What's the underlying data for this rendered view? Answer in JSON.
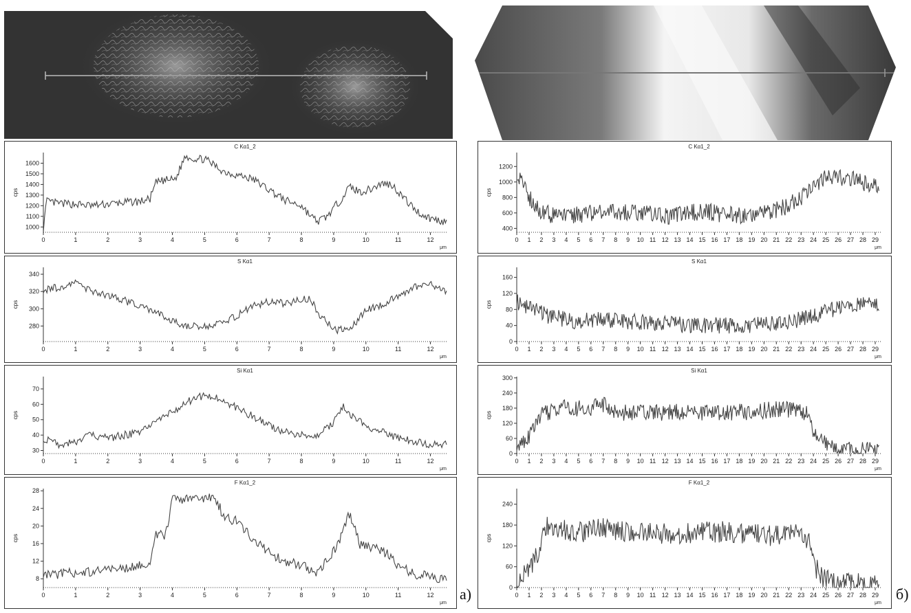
{
  "panel_labels": {
    "left": "а)",
    "right": "б)"
  },
  "chart_data": [
    {
      "id": "a-C",
      "type": "line",
      "title": "C Kα1_2",
      "ylabel": "cps",
      "xunit": "μm",
      "xlim": [
        0,
        12.5
      ],
      "ylim": [
        950,
        1700
      ],
      "xticks": [
        0,
        1,
        2,
        3,
        4,
        5,
        6,
        7,
        8,
        9,
        10,
        11,
        12
      ],
      "yticks": [
        1000,
        1100,
        1200,
        1300,
        1400,
        1500,
        1600
      ],
      "x": [
        0,
        0.1,
        0.5,
        1.0,
        1.5,
        2.0,
        2.5,
        3.0,
        3.3,
        3.5,
        3.8,
        4.1,
        4.4,
        4.7,
        5.0,
        5.3,
        5.6,
        6.0,
        6.5,
        7.0,
        7.5,
        8.0,
        8.3,
        8.5,
        8.8,
        9.2,
        9.5,
        9.8,
        10.1,
        10.5,
        10.8,
        11.1,
        11.4,
        11.7,
        12.0,
        12.3,
        12.5
      ],
      "y": [
        980,
        1240,
        1220,
        1215,
        1200,
        1215,
        1230,
        1240,
        1260,
        1420,
        1440,
        1450,
        1670,
        1640,
        1640,
        1580,
        1520,
        1490,
        1450,
        1350,
        1250,
        1200,
        1100,
        1050,
        1100,
        1250,
        1380,
        1330,
        1350,
        1410,
        1400,
        1300,
        1200,
        1120,
        1080,
        1060,
        1050
      ]
    },
    {
      "id": "a-S",
      "type": "line",
      "title": "S Kα1",
      "ylabel": "cps",
      "xunit": "μm",
      "xlim": [
        0,
        12.5
      ],
      "ylim": [
        262,
        348
      ],
      "xticks": [
        0,
        1,
        2,
        3,
        4,
        5,
        6,
        7,
        8,
        9,
        10,
        11,
        12
      ],
      "yticks": [
        280,
        300,
        320,
        340
      ],
      "x": [
        0,
        0.5,
        1.0,
        1.5,
        2.0,
        2.5,
        3.0,
        3.5,
        4.0,
        4.5,
        5.0,
        5.5,
        6.0,
        6.5,
        7.0,
        7.5,
        8.0,
        8.3,
        8.5,
        8.8,
        9.0,
        9.3,
        9.6,
        10.0,
        10.5,
        11.0,
        11.5,
        12.0,
        12.5
      ],
      "y": [
        322,
        325,
        330,
        320,
        316,
        310,
        302,
        296,
        285,
        280,
        279,
        283,
        292,
        303,
        308,
        306,
        310,
        312,
        295,
        285,
        275,
        276,
        280,
        298,
        305,
        315,
        325,
        328,
        320
      ]
    },
    {
      "id": "a-Si",
      "type": "line",
      "title": "Si Kα1",
      "ylabel": "cps",
      "xunit": "μm",
      "xlim": [
        0,
        12.5
      ],
      "ylim": [
        28,
        78
      ],
      "xticks": [
        0,
        1,
        2,
        3,
        4,
        5,
        6,
        7,
        8,
        9,
        10,
        11,
        12
      ],
      "yticks": [
        30,
        40,
        50,
        60,
        70
      ],
      "x": [
        0,
        0.5,
        1.0,
        1.5,
        2.0,
        2.5,
        3.0,
        3.5,
        4.0,
        4.5,
        5.0,
        5.5,
        6.0,
        6.5,
        7.0,
        7.5,
        8.0,
        8.5,
        9.0,
        9.3,
        9.6,
        10.0,
        10.5,
        11.0,
        11.5,
        12.0,
        12.5
      ],
      "y": [
        38,
        34,
        36,
        40,
        38,
        40,
        42,
        48,
        55,
        62,
        66,
        63,
        58,
        52,
        46,
        42,
        40,
        40,
        48,
        58,
        52,
        46,
        42,
        38,
        36,
        34,
        34
      ]
    },
    {
      "id": "a-F",
      "type": "line",
      "title": "F Kα1_2",
      "ylabel": "cps",
      "xunit": "μm",
      "xlim": [
        0,
        12.5
      ],
      "ylim": [
        6,
        28.5
      ],
      "xticks": [
        0,
        1,
        2,
        3,
        4,
        5,
        6,
        7,
        8,
        9,
        10,
        11,
        12
      ],
      "yticks": [
        8,
        12,
        16,
        20,
        24,
        28
      ],
      "x": [
        0,
        0.5,
        1.0,
        1.5,
        2.0,
        2.5,
        3.0,
        3.3,
        3.5,
        3.8,
        4.0,
        4.3,
        4.6,
        5.0,
        5.3,
        5.6,
        6.0,
        6.5,
        7.0,
        7.5,
        8.0,
        8.5,
        8.8,
        9.2,
        9.5,
        9.8,
        10.2,
        10.6,
        11.0,
        11.5,
        12.0,
        12.5
      ],
      "y": [
        9,
        9,
        9.5,
        9.5,
        10,
        10.5,
        11,
        12,
        18,
        18,
        26,
        26,
        26,
        26,
        27,
        22,
        21,
        17,
        14,
        12,
        11,
        9.5,
        12,
        17,
        23,
        16,
        15,
        14,
        11,
        9,
        8.5,
        8
      ]
    },
    {
      "id": "b-C",
      "type": "line",
      "title": "C Kα1_2",
      "ylabel": "cps",
      "xunit": "μm",
      "xlim": [
        0,
        29.5
      ],
      "ylim": [
        350,
        1380
      ],
      "xticks": [
        0,
        1,
        2,
        3,
        4,
        5,
        6,
        7,
        8,
        9,
        10,
        11,
        12,
        13,
        14,
        15,
        16,
        17,
        18,
        19,
        20,
        21,
        22,
        23,
        24,
        25,
        26,
        27,
        28,
        29
      ],
      "yticks": [
        400,
        600,
        800,
        1000,
        1200
      ],
      "x": [
        0,
        0.5,
        1,
        2,
        3,
        4,
        5,
        6,
        7,
        8,
        9,
        10,
        11,
        12,
        13,
        14,
        15,
        16,
        17,
        18,
        19,
        20,
        21,
        22,
        23,
        24,
        25,
        26,
        27,
        28,
        29,
        29.3
      ],
      "y": [
        1080,
        1000,
        800,
        620,
        560,
        560,
        580,
        600,
        640,
        620,
        600,
        600,
        580,
        560,
        580,
        600,
        620,
        600,
        580,
        560,
        570,
        600,
        640,
        700,
        800,
        950,
        1050,
        1050,
        1050,
        1000,
        950,
        920
      ]
    },
    {
      "id": "b-S",
      "type": "line",
      "title": "S Kα1",
      "ylabel": "cps",
      "xunit": "μm",
      "xlim": [
        0,
        29.5
      ],
      "ylim": [
        0,
        185
      ],
      "xticks": [
        0,
        1,
        2,
        3,
        4,
        5,
        6,
        7,
        8,
        9,
        10,
        11,
        12,
        13,
        14,
        15,
        16,
        17,
        18,
        19,
        20,
        21,
        22,
        23,
        24,
        25,
        26,
        27,
        28,
        29
      ],
      "yticks": [
        0,
        40,
        80,
        120,
        160
      ],
      "x": [
        0,
        1,
        2,
        3,
        4,
        5,
        6,
        7,
        8,
        9,
        10,
        11,
        12,
        13,
        14,
        15,
        16,
        17,
        18,
        19,
        20,
        21,
        22,
        23,
        24,
        25,
        26,
        27,
        28,
        29,
        29.3
      ],
      "y": [
        100,
        85,
        70,
        60,
        55,
        50,
        55,
        55,
        52,
        50,
        48,
        45,
        45,
        42,
        42,
        40,
        40,
        40,
        40,
        42,
        45,
        48,
        50,
        55,
        65,
        75,
        82,
        90,
        95,
        100,
        95
      ]
    },
    {
      "id": "b-Si",
      "type": "line",
      "title": "Si Kα1",
      "ylabel": "cps",
      "xunit": "μm",
      "xlim": [
        0,
        29.5
      ],
      "ylim": [
        0,
        305
      ],
      "xticks": [
        0,
        1,
        2,
        3,
        4,
        5,
        6,
        7,
        8,
        9,
        10,
        11,
        12,
        13,
        14,
        15,
        16,
        17,
        18,
        19,
        20,
        21,
        22,
        23,
        24,
        25,
        26,
        27,
        28,
        29
      ],
      "yticks": [
        0,
        60,
        120,
        180,
        240,
        300
      ],
      "x": [
        0,
        0.5,
        1,
        1.5,
        2,
        3,
        4,
        5,
        6,
        7,
        8,
        9,
        10,
        11,
        12,
        13,
        14,
        15,
        16,
        17,
        18,
        19,
        20,
        21,
        22,
        23,
        23.5,
        24,
        25,
        26,
        27,
        28,
        29,
        29.3
      ],
      "y": [
        20,
        40,
        70,
        110,
        150,
        175,
        185,
        180,
        180,
        195,
        170,
        160,
        160,
        160,
        160,
        165,
        165,
        165,
        165,
        165,
        165,
        165,
        170,
        175,
        175,
        165,
        160,
        80,
        40,
        20,
        15,
        12,
        15,
        15
      ]
    },
    {
      "id": "b-F",
      "type": "line",
      "title": "F Kα1_2",
      "ylabel": "cps",
      "xunit": "μm",
      "xlim": [
        0,
        29.5
      ],
      "ylim": [
        0,
        285
      ],
      "xticks": [
        0,
        1,
        2,
        3,
        4,
        5,
        6,
        7,
        8,
        9,
        10,
        11,
        12,
        13,
        14,
        15,
        16,
        17,
        18,
        19,
        20,
        21,
        22,
        23,
        24,
        25,
        26,
        27,
        28,
        29
      ],
      "yticks": [
        0,
        60,
        120,
        180,
        240
      ],
      "x": [
        0,
        0.5,
        1,
        1.5,
        2,
        2.5,
        3,
        4,
        5,
        6,
        7,
        8,
        9,
        10,
        11,
        12,
        13,
        14,
        15,
        16,
        17,
        18,
        19,
        20,
        21,
        22,
        23,
        23.7,
        24,
        25,
        26,
        27,
        28,
        29,
        29.3
      ],
      "y": [
        10,
        30,
        50,
        80,
        130,
        180,
        175,
        165,
        160,
        165,
        170,
        165,
        160,
        160,
        160,
        155,
        150,
        155,
        160,
        160,
        160,
        160,
        155,
        150,
        150,
        155,
        150,
        140,
        60,
        25,
        15,
        12,
        10,
        10,
        10
      ]
    }
  ]
}
